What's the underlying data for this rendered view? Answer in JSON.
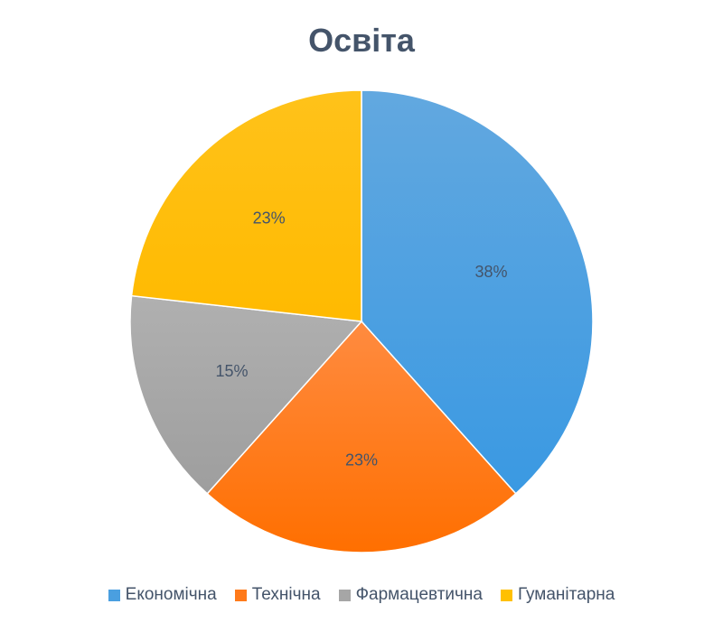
{
  "chart_data": {
    "type": "pie",
    "title": "Освіта",
    "categories": [
      "Економічна",
      "Технічна",
      "Фармацевтична",
      "Гуманітарна"
    ],
    "values": [
      38,
      23,
      15,
      23
    ],
    "value_labels": [
      "38%",
      "23%",
      "15%",
      "23%"
    ],
    "colors": [
      "#4a9fe0",
      "#ff7a1a",
      "#a6a6a6",
      "#ffc000"
    ],
    "legend_position": "bottom",
    "start_angle": "top",
    "direction": "clockwise"
  }
}
